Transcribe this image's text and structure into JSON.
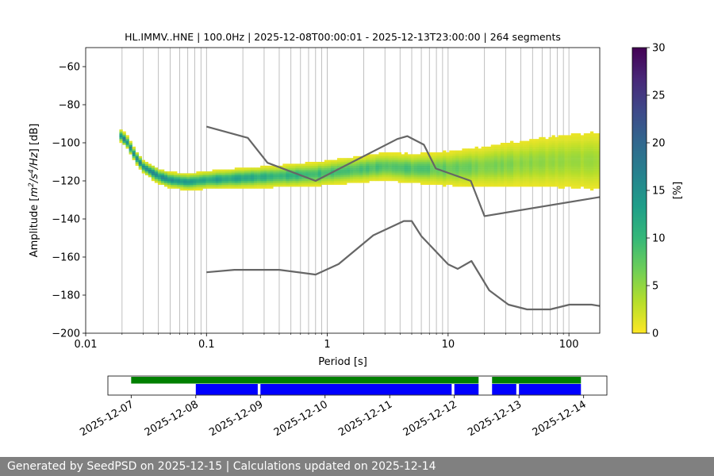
{
  "chart_data": {
    "type": "heatmap",
    "title": "HL.IMMV..HNE | 100.0Hz | 2025-12-08T00:00:01 - 2025-12-13T23:00:00 | 264 segments",
    "xlabel": "Period [s]",
    "ylabel_parts": [
      "Amplitude [",
      "m",
      "2",
      "/",
      "s",
      "4",
      "/",
      "Hz",
      "] [dB]"
    ],
    "x_scale": "log",
    "xlim": [
      0.01,
      180
    ],
    "ylim": [
      -200,
      -50
    ],
    "x_ticks": [
      {
        "v": 0.01,
        "label": "0.01"
      },
      {
        "v": 0.1,
        "label": "0.1"
      },
      {
        "v": 1,
        "label": "1"
      },
      {
        "v": 10,
        "label": "10"
      },
      {
        "v": 100,
        "label": "100"
      }
    ],
    "y_ticks": [
      {
        "v": -60,
        "label": "−60"
      },
      {
        "v": -80,
        "label": "−80"
      },
      {
        "v": -100,
        "label": "−100"
      },
      {
        "v": -120,
        "label": "−120"
      },
      {
        "v": -140,
        "label": "−140"
      },
      {
        "v": -160,
        "label": "−160"
      },
      {
        "v": -180,
        "label": "−180"
      },
      {
        "v": -200,
        "label": "−200"
      }
    ],
    "grid": "vertical minor lines on period axis",
    "colorbar": {
      "label": "[%]",
      "ticks": [
        {
          "v": 0,
          "label": "0"
        },
        {
          "v": 5,
          "label": "5"
        },
        {
          "v": 10,
          "label": "10"
        },
        {
          "v": 15,
          "label": "15"
        },
        {
          "v": 20,
          "label": "20"
        },
        {
          "v": 25,
          "label": "25"
        },
        {
          "v": 30,
          "label": "30"
        }
      ],
      "range": [
        0,
        30
      ],
      "colormap": [
        "#fde725",
        "#b5de2b",
        "#6ece58",
        "#35b779",
        "#1f9e89",
        "#26828e",
        "#31688e",
        "#3e4989",
        "#482878",
        "#440154"
      ]
    },
    "psd_center": [
      {
        "p": 0.019,
        "db": -96
      },
      {
        "p": 0.022,
        "db": -100
      },
      {
        "p": 0.026,
        "db": -108
      },
      {
        "p": 0.03,
        "db": -113
      },
      {
        "p": 0.04,
        "db": -118
      },
      {
        "p": 0.05,
        "db": -120
      },
      {
        "p": 0.07,
        "db": -121
      },
      {
        "p": 0.1,
        "db": -120
      },
      {
        "p": 0.2,
        "db": -119
      },
      {
        "p": 0.4,
        "db": -118
      },
      {
        "p": 0.8,
        "db": -117
      },
      {
        "p": 1.5,
        "db": -115
      },
      {
        "p": 3,
        "db": -113
      },
      {
        "p": 5,
        "db": -114
      },
      {
        "p": 10,
        "db": -114
      },
      {
        "p": 20,
        "db": -113
      },
      {
        "p": 50,
        "db": -111
      },
      {
        "p": 100,
        "db": -110
      },
      {
        "p": 180,
        "db": -110
      }
    ],
    "noise_model_high": [
      {
        "p": 0.1,
        "db": -91.5
      },
      {
        "p": 0.22,
        "db": -97.4
      },
      {
        "p": 0.32,
        "db": -110.5
      },
      {
        "p": 0.8,
        "db": -120
      },
      {
        "p": 3.8,
        "db": -98
      },
      {
        "p": 4.6,
        "db": -96.5
      },
      {
        "p": 6.3,
        "db": -101
      },
      {
        "p": 7.9,
        "db": -113.5
      },
      {
        "p": 15.4,
        "db": -120
      },
      {
        "p": 20,
        "db": -138.5
      },
      {
        "p": 180,
        "db": -128.5
      }
    ],
    "noise_model_low": [
      {
        "p": 0.1,
        "db": -168
      },
      {
        "p": 0.17,
        "db": -166.7
      },
      {
        "p": 0.4,
        "db": -166.7
      },
      {
        "p": 0.8,
        "db": -169.2
      },
      {
        "p": 1.24,
        "db": -163.7
      },
      {
        "p": 2.4,
        "db": -148.6
      },
      {
        "p": 4.3,
        "db": -141.1
      },
      {
        "p": 5,
        "db": -141.1
      },
      {
        "p": 6,
        "db": -149
      },
      {
        "p": 10,
        "db": -163.8
      },
      {
        "p": 12,
        "db": -166.2
      },
      {
        "p": 15.6,
        "db": -162.1
      },
      {
        "p": 21.9,
        "db": -177.5
      },
      {
        "p": 31.6,
        "db": -185
      },
      {
        "p": 45,
        "db": -187.5
      },
      {
        "p": 70,
        "db": -187.5
      },
      {
        "p": 101,
        "db": -185
      },
      {
        "p": 154,
        "db": -185
      },
      {
        "p": 180,
        "db": -185.7
      }
    ],
    "noise_model_color": "#666666",
    "availability": {
      "date_ticks": [
        "2025-12-07",
        "2025-12-08",
        "2025-12-09",
        "2025-12-10",
        "2025-12-11",
        "2025-12-12",
        "2025-12-13",
        "2025-12-14"
      ],
      "data_color": "#008000",
      "psd_color": "#0000ff",
      "data_spans": [
        {
          "from": "2025-12-07",
          "to": "2025-12-12T09:00"
        },
        {
          "from": "2025-12-12T14:00",
          "to": "2025-12-13T23:00"
        }
      ],
      "psd_spans": [
        {
          "from": "2025-12-08T00:00",
          "to": "2025-12-08T23:00"
        },
        {
          "from": "2025-12-09T00:00",
          "to": "2025-12-11T23:00"
        },
        {
          "from": "2025-12-12T00:00",
          "to": "2025-12-12T09:00"
        },
        {
          "from": "2025-12-12T14:00",
          "to": "2025-12-12T23:00"
        },
        {
          "from": "2025-12-13T00:00",
          "to": "2025-12-13T23:00"
        }
      ]
    }
  },
  "footer": {
    "text": "Generated by SeedPSD on 2025-12-15 | Calculations updated on 2025-12-14"
  }
}
